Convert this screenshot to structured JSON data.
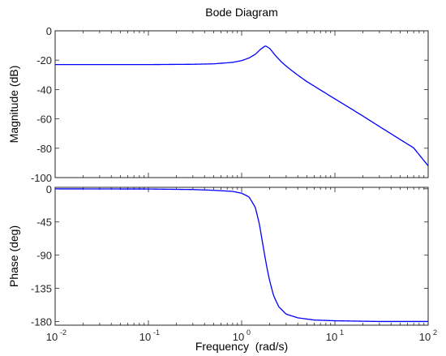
{
  "chart_data": [
    {
      "type": "line",
      "panel": "magnitude",
      "title": "Bode Diagram",
      "ylabel": "Magnitude (dB)",
      "xlabel": "",
      "xscale": "log",
      "xlim": [
        0.01,
        100
      ],
      "ylim": [
        -100,
        0
      ],
      "yticks": [
        0,
        -20,
        -40,
        -60,
        -80,
        -100
      ],
      "ytick_labels": [
        "0",
        "-20",
        "-40",
        "-60",
        "-80",
        "-100"
      ],
      "grid": false,
      "color": "#0000ff",
      "series": [
        {
          "x": [
            0.01,
            0.03,
            0.1,
            0.3,
            0.5,
            0.8,
            1.0,
            1.2,
            1.4,
            1.6,
            1.8,
            2.0,
            2.3,
            2.7,
            3.2,
            4,
            5,
            7,
            10,
            15,
            20,
            30,
            50,
            70,
            100
          ],
          "values": [
            -23,
            -23,
            -23,
            -22.8,
            -22.5,
            -21.5,
            -20.3,
            -18.5,
            -16,
            -12.5,
            -10.2,
            -12,
            -16.8,
            -21.5,
            -25.5,
            -30.2,
            -34.6,
            -40.3,
            -46.4,
            -53.2,
            -58.1,
            -65.2,
            -74.0,
            -79.8,
            -92.0
          ]
        }
      ]
    },
    {
      "type": "line",
      "panel": "phase",
      "title": "",
      "ylabel": "Phase (deg)",
      "xlabel": "Frequency  (rad/s)",
      "xscale": "log",
      "xlim": [
        0.01,
        100
      ],
      "ylim": [
        -185,
        2
      ],
      "yticks": [
        0,
        -45,
        -90,
        -135,
        -180
      ],
      "ytick_labels": [
        "0",
        "-45",
        "-90",
        "-135",
        "-180"
      ],
      "xtick_labels": [
        {
          "base": "10",
          "exp": "-2"
        },
        {
          "base": "10",
          "exp": "-1"
        },
        {
          "base": "10",
          "exp": "0"
        },
        {
          "base": "10",
          "exp": "1"
        },
        {
          "base": "10",
          "exp": "2"
        }
      ],
      "grid": false,
      "color": "#0000ff",
      "series": [
        {
          "x": [
            0.01,
            0.1,
            0.3,
            0.5,
            0.8,
            1.0,
            1.2,
            1.4,
            1.55,
            1.7,
            1.8,
            1.9,
            2.0,
            2.2,
            2.5,
            3.0,
            4.0,
            6.0,
            10,
            30,
            100
          ],
          "values": [
            -0.1,
            -0.3,
            -1,
            -2,
            -3.5,
            -6,
            -11,
            -25,
            -48,
            -78,
            -96,
            -112,
            -125,
            -145,
            -160,
            -170,
            -175,
            -178,
            -179,
            -180,
            -180
          ]
        }
      ]
    }
  ]
}
